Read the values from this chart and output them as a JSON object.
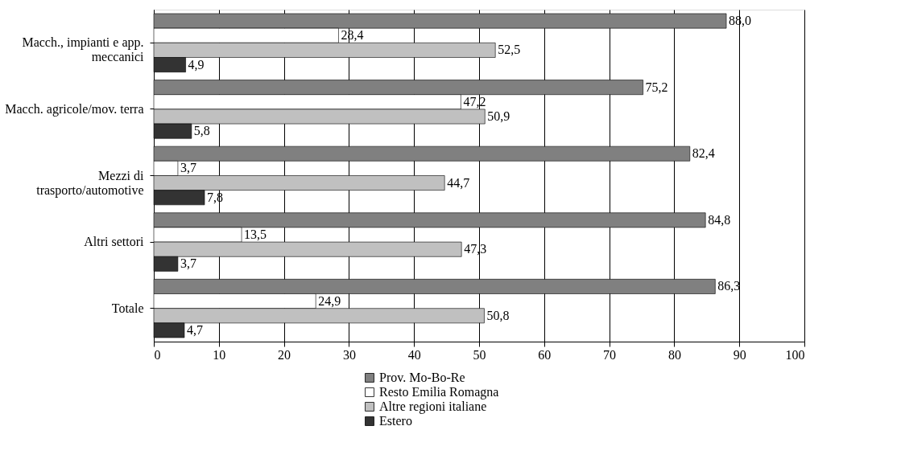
{
  "chart_data": {
    "type": "bar",
    "orientation": "horizontal",
    "categories": [
      "Macch., impianti e app. meccanici",
      "Macch. agricole/mov. terra",
      "Mezzi di trasporto/automotive",
      "Altri settori",
      "Totale"
    ],
    "series": [
      {
        "name": "Prov. Mo-Bo-Re",
        "color": "#808080",
        "values": [
          88.0,
          75.2,
          82.4,
          84.8,
          86.3
        ],
        "value_labels": [
          "88,0",
          "75,2",
          "82,4",
          "84,8",
          "86,3"
        ]
      },
      {
        "name": "Resto Emilia Romagna",
        "color": "#ffffff",
        "values": [
          28.4,
          47.2,
          3.7,
          13.5,
          24.9
        ],
        "value_labels": [
          "28,4",
          "47,2",
          "3,7",
          "13,5",
          "24,9"
        ]
      },
      {
        "name": "Altre regioni italiane",
        "color": "#c0c0c0",
        "values": [
          52.5,
          50.9,
          44.7,
          47.3,
          50.8
        ],
        "value_labels": [
          "52,5",
          "50,9",
          "44,7",
          "47,3",
          "50,8"
        ]
      },
      {
        "name": "Estero",
        "color": "#333333",
        "values": [
          4.9,
          5.8,
          7.8,
          3.7,
          4.7
        ],
        "value_labels": [
          "4,9",
          "5,8",
          "7,8",
          "3,7",
          "4,7"
        ]
      }
    ],
    "xlim": [
      0,
      100
    ],
    "xticks": [
      0,
      10,
      20,
      30,
      40,
      50,
      60,
      70,
      80,
      90,
      100
    ],
    "grid": "x",
    "legend": "bottom"
  }
}
